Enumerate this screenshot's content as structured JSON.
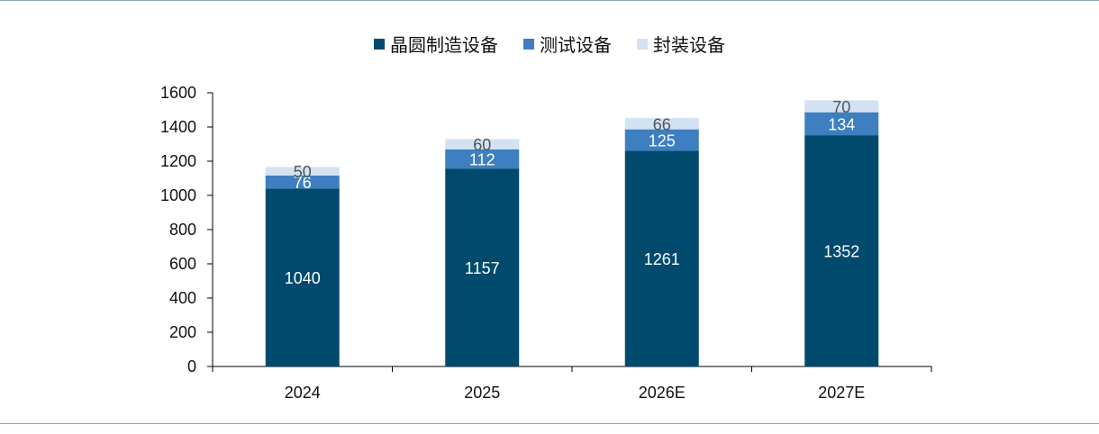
{
  "chart_data": {
    "type": "bar",
    "stacked": true,
    "categories": [
      "2024",
      "2025",
      "2026E",
      "2027E"
    ],
    "series": [
      {
        "name": "晶圆制造设备",
        "values": [
          1040,
          1157,
          1261,
          1352
        ],
        "color": "#004a6e"
      },
      {
        "name": "测试设备",
        "values": [
          76,
          112,
          125,
          134
        ],
        "color": "#3d7fc1"
      },
      {
        "name": "封装设备",
        "values": [
          50,
          60,
          66,
          70
        ],
        "color": "#d2e2f2"
      }
    ],
    "yticks": [
      "0",
      "200",
      "400",
      "600",
      "800",
      "1000",
      "1200",
      "1400",
      "1600"
    ],
    "ylim": [
      0,
      1600
    ],
    "legend_position": "top-center",
    "grid": false
  }
}
